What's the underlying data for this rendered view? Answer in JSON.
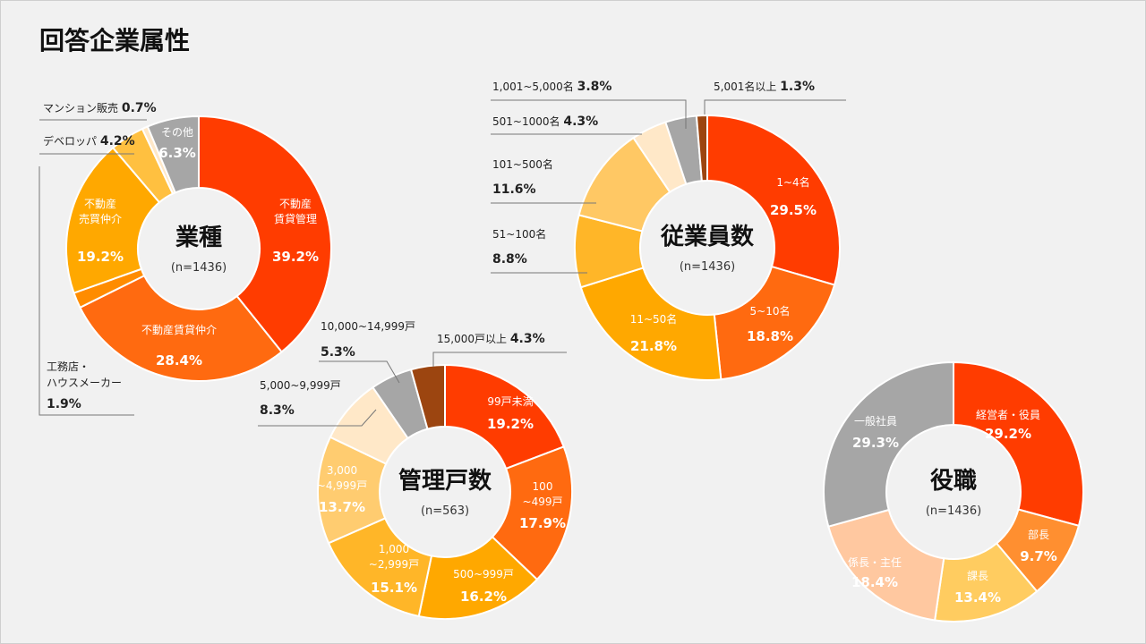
{
  "page_title": "回答企業属性",
  "chart_data": [
    {
      "type": "pie",
      "title": "業種",
      "note": "(n=1436)",
      "categories": [
        "不動産賃貸管理",
        "不動産賃貸仲介",
        "工務店・ハウスメーカー",
        "不動産売買仲介",
        "デベロッパ",
        "マンション販売",
        "その他"
      ],
      "label_lines": [
        [
          "不動産",
          "賃貸管理"
        ],
        [
          "不動産賃貸仲介"
        ],
        [
          "工務店・",
          "ハウスメーカー"
        ],
        [
          "不動産",
          "売買仲介"
        ],
        [
          "デベロッパ"
        ],
        [
          "マンション販売"
        ],
        [
          "その他"
        ]
      ],
      "values": [
        39.2,
        28.4,
        1.9,
        19.2,
        4.2,
        0.7,
        6.3
      ],
      "value_labels": [
        "39.2%",
        "28.4%",
        "1.9%",
        "19.2%",
        "4.2%",
        "0.7%",
        "6.3%"
      ],
      "colors": [
        "#ff3c00",
        "#ff6a10",
        "#ff8c00",
        "#ffa800",
        "#ffc040",
        "#ffe8c8",
        "#a6a6a6"
      ]
    },
    {
      "type": "pie",
      "title": "従業員数",
      "note": "(n=1436)",
      "categories": [
        "1~4名",
        "5~10名",
        "11~50名",
        "51~100名",
        "101~500名",
        "501~1000名",
        "1,001~5,000名",
        "5,001名以上"
      ],
      "label_lines": [
        [
          "1~4名"
        ],
        [
          "5~10名"
        ],
        [
          "11~50名"
        ],
        [
          "51~100名"
        ],
        [
          "101~500名"
        ],
        [
          "501~1000名"
        ],
        [
          "1,001~5,000名"
        ],
        [
          "5,001名以上"
        ]
      ],
      "values": [
        29.5,
        18.8,
        21.8,
        8.8,
        11.6,
        4.3,
        3.8,
        1.3
      ],
      "value_labels": [
        "29.5%",
        "18.8%",
        "21.8%",
        "8.8%",
        "11.6%",
        "4.3%",
        "3.8%",
        "1.3%"
      ],
      "colors": [
        "#ff3c00",
        "#ff6a10",
        "#ffa800",
        "#ffb628",
        "#ffc864",
        "#ffe8c8",
        "#a6a6a6",
        "#9c4510"
      ]
    },
    {
      "type": "pie",
      "title": "管理戸数",
      "note": "(n=563)",
      "categories": [
        "99戸未満",
        "100~499戸",
        "500~999戸",
        "1,000~2,999戸",
        "3,000~4,999戸",
        "5,000~9,999戸",
        "10,000~14,999戸",
        "15,000戸以上"
      ],
      "label_lines": [
        [
          "99戸未満"
        ],
        [
          "100",
          "~499戸"
        ],
        [
          "500~999戸"
        ],
        [
          "1,000",
          "~2,999戸"
        ],
        [
          "3,000",
          "~4,999戸"
        ],
        [
          "5,000~9,999戸"
        ],
        [
          "10,000~14,999戸"
        ],
        [
          "15,000戸以上"
        ]
      ],
      "values": [
        19.2,
        17.9,
        16.2,
        15.1,
        13.7,
        8.3,
        5.3,
        4.3
      ],
      "value_labels": [
        "19.2%",
        "17.9%",
        "16.2%",
        "15.1%",
        "13.7%",
        "8.3%",
        "5.3%",
        "4.3%"
      ],
      "colors": [
        "#ff3c00",
        "#ff6a10",
        "#ffa800",
        "#ffb628",
        "#ffcc70",
        "#ffe8c8",
        "#a6a6a6",
        "#9c4510"
      ]
    },
    {
      "type": "pie",
      "title": "役職",
      "note": "(n=1436)",
      "categories": [
        "経営者・役員",
        "部長",
        "課長",
        "係長・主任",
        "一般社員"
      ],
      "label_lines": [
        [
          "経営者・役員"
        ],
        [
          "部長"
        ],
        [
          "課長"
        ],
        [
          "係長・主任"
        ],
        [
          "一般社員"
        ]
      ],
      "values": [
        29.2,
        9.7,
        13.4,
        18.4,
        29.3
      ],
      "value_labels": [
        "29.2%",
        "9.7%",
        "13.4%",
        "18.4%",
        "29.3%"
      ],
      "colors": [
        "#ff3c00",
        "#ff8f30",
        "#ffcc60",
        "#ffc8a0",
        "#a6a6a6"
      ]
    }
  ]
}
